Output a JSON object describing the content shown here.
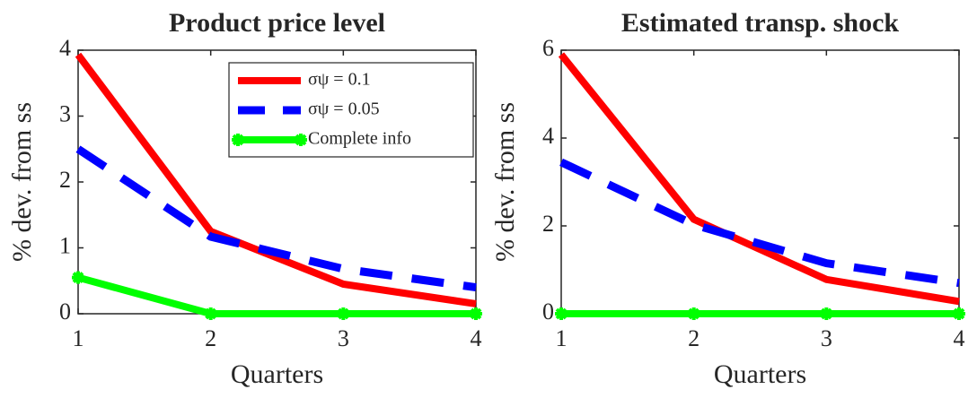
{
  "chart_data": [
    {
      "type": "line",
      "title": "Product price level",
      "xlabel": "Quarters",
      "ylabel": "% dev. from ss",
      "x": [
        1,
        2,
        3,
        4
      ],
      "xlim": [
        1,
        4
      ],
      "xticks": [
        1,
        2,
        3,
        4
      ],
      "ylim": [
        0,
        4
      ],
      "yticks": [
        0,
        1,
        2,
        3,
        4
      ],
      "grid": false,
      "legend": "upper right",
      "series": [
        {
          "name": "σψ = 0.1",
          "color": "#ff0000",
          "line_style": "solid",
          "values": [
            3.93,
            1.25,
            0.45,
            0.15
          ]
        },
        {
          "name": "σψ = 0.05",
          "color": "#0000ff",
          "line_style": "dashed",
          "values": [
            2.5,
            1.17,
            0.68,
            0.4
          ]
        },
        {
          "name": "Complete info",
          "color": "#00ff00",
          "line_style": "solid",
          "marker": "*",
          "values": [
            0.55,
            0,
            0,
            0
          ]
        }
      ]
    },
    {
      "type": "line",
      "title": "Estimated transp. shock",
      "xlabel": "Quarters",
      "ylabel": "% dev. from ss",
      "x": [
        1,
        2,
        3,
        4
      ],
      "xlim": [
        1,
        4
      ],
      "xticks": [
        1,
        2,
        3,
        4
      ],
      "ylim": [
        0,
        6
      ],
      "yticks": [
        0,
        2,
        4,
        6
      ],
      "grid": false,
      "series": [
        {
          "color": "#ff0000",
          "line_style": "solid",
          "values": [
            5.9,
            2.15,
            0.78,
            0.28
          ]
        },
        {
          "color": "#0000ff",
          "line_style": "dashed",
          "values": [
            3.45,
            2.03,
            1.15,
            0.7
          ]
        },
        {
          "color": "#00ff00",
          "line_style": "solid",
          "marker": "*",
          "values": [
            0,
            0,
            0,
            0
          ]
        }
      ]
    }
  ]
}
